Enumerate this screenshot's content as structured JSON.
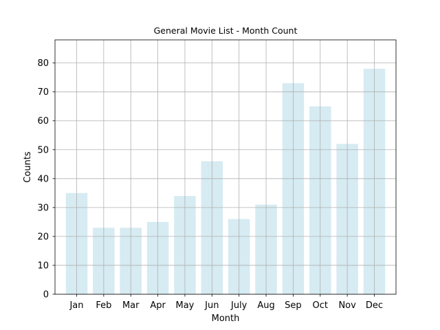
{
  "chart_data": {
    "type": "bar",
    "title": "General Movie List - Month Count",
    "xlabel": "Month",
    "ylabel": "Counts",
    "categories": [
      "Jan",
      "Feb",
      "Mar",
      "Apr",
      "May",
      "Jun",
      "July",
      "Aug",
      "Sep",
      "Oct",
      "Nov",
      "Dec"
    ],
    "values": [
      35,
      23,
      23,
      25,
      34,
      46,
      26,
      31,
      73,
      65,
      52,
      78
    ],
    "ylim": [
      0,
      88
    ],
    "yticks": [
      0,
      10,
      20,
      30,
      40,
      50,
      60,
      70,
      80
    ],
    "grid": true,
    "bar_color": "#add8e6",
    "bar_alpha": 0.5,
    "grid_color": "#b0b0b0"
  }
}
